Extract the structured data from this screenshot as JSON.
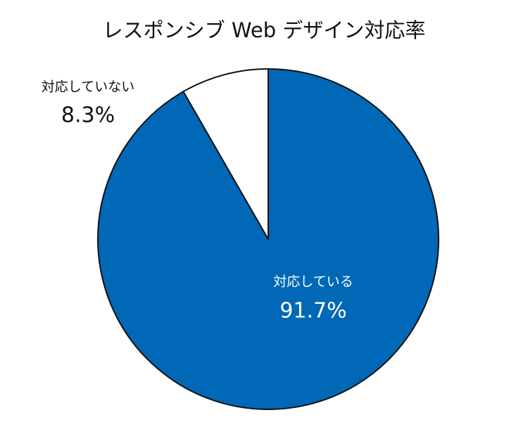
{
  "chart_data": {
    "type": "pie",
    "title": "レスポンシブ Web デザイン対応率",
    "categories": [
      "対応している",
      "対応していない"
    ],
    "values": [
      91.7,
      8.3
    ],
    "value_labels": [
      "91.7%",
      "8.3%"
    ],
    "colors": [
      "#0068b7",
      "#ffffff"
    ]
  }
}
